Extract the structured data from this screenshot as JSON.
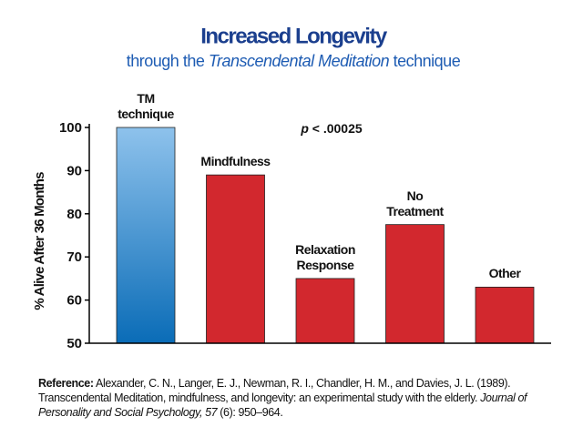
{
  "chart_data": {
    "type": "bar",
    "title": "Increased Longevity",
    "subtitle": [
      "through the ",
      "Transcendental Meditation",
      " technique"
    ],
    "ylabel": "% Alive After 36 Months",
    "annotation": [
      "p",
      " < .00025"
    ],
    "categories": [
      "TM\ntechnique",
      "Mindfulness",
      "Relaxation\nResponse",
      "No\nTreatment",
      "Other"
    ],
    "values": [
      100,
      89,
      65,
      77.5,
      63
    ],
    "colors": [
      [
        "#8ec2ec",
        "#0a6cb7"
      ],
      "#d2282e",
      "#d2282e",
      "#d2282e",
      "#d2282e"
    ],
    "ylim": [
      50,
      100
    ],
    "yticks": [
      50,
      60,
      70,
      80,
      90,
      100
    ],
    "grid": false
  },
  "reference": [
    "Reference:",
    " Alexander, C. N., Langer, E. J., Newman, R. I., Chandler, H. M., and Davies, J. L. (1989). Transcendental Meditation, mindfulness, and longevity: an experimental study with the elderly. ",
    "Journal of Personality and Social Psychology, 57",
    " (6): 950–964."
  ]
}
